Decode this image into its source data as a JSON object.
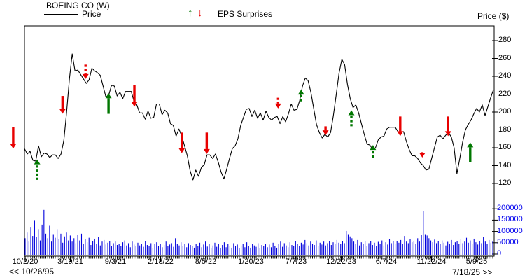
{
  "header": {
    "title": "BOEING CO (W)",
    "price_legend": "Price",
    "eps_legend": "EPS Surprises",
    "right_axis_title": "Price ($)",
    "up_glyph": "↑",
    "down_glyph": "↓"
  },
  "nav": {
    "back": "<< 10/26/95",
    "forward": "7/18/25 >>"
  },
  "colors": {
    "price_line": "#000000",
    "volume_bar": "#0000dd",
    "axis_label_blue": "#0000ee",
    "eps_up": "#007700",
    "eps_down": "#e80000",
    "border": "#000000"
  },
  "chart_data": {
    "type": "line",
    "title": "BOEING CO (W)",
    "ylabel": "Price ($)",
    "x_tick_labels": [
      "10/2/20",
      "3/19/21",
      "9/3/21",
      "2/18/22",
      "8/5/22",
      "1/20/23",
      "7/7/23",
      "12/22/23",
      "6/7/24",
      "11/22/24",
      "5/9/25"
    ],
    "price_axis_ticks": [
      280,
      260,
      240,
      220,
      200,
      180,
      160,
      140,
      120
    ],
    "price_axis_range": [
      98,
      296
    ],
    "grid": "off",
    "legend_position": "top",
    "series": [
      {
        "name": "Price",
        "values": [
          159,
          153,
          156,
          146,
          145,
          162,
          150,
          154,
          153,
          149,
          152,
          152,
          148,
          153,
          168,
          200,
          237,
          265,
          246,
          247,
          242,
          237,
          232,
          236,
          249,
          246,
          244,
          241,
          229,
          217,
          219,
          230,
          229,
          218,
          222,
          215,
          223,
          223,
          223,
          212,
          208,
          199,
          199,
          192,
          201,
          193,
          194,
          209,
          209,
          197,
          202,
          199,
          187,
          185,
          173,
          181,
          173,
          162,
          151,
          134,
          124,
          135,
          128,
          138,
          141,
          152,
          152,
          148,
          153,
          144,
          133,
          125,
          136,
          148,
          159,
          162,
          170,
          185,
          194,
          203,
          204,
          195,
          202,
          193,
          199,
          191,
          201,
          194,
          191,
          194,
          195,
          187,
          195,
          189,
          198,
          209,
          202,
          203,
          213,
          229,
          238,
          235,
          222,
          204,
          186,
          177,
          171,
          175,
          172,
          177,
          196,
          219,
          243,
          259,
          253,
          231,
          215,
          205,
          208,
          199,
          187,
          175,
          164,
          163,
          158,
          160,
          169,
          172,
          173,
          181,
          183,
          183,
          183,
          178,
          178,
          178,
          167,
          158,
          151,
          151,
          148,
          143,
          140,
          135,
          136,
          148,
          160,
          172,
          174,
          170,
          174,
          177,
          172,
          160,
          131,
          148,
          166,
          180,
          186,
          191,
          198,
          204,
          200,
          208,
          196,
          206,
          216,
          225
        ]
      }
    ],
    "volume": {
      "axis_tick_labels": [
        "200000",
        "150000",
        "100000",
        "50000",
        "0"
      ],
      "axis_ticks_k": [
        200,
        150,
        100,
        50,
        0
      ],
      "unit": "thousands of shares",
      "values_k": [
        70,
        95,
        55,
        120,
        80,
        150,
        75,
        110,
        60,
        130,
        195,
        90,
        70,
        125,
        55,
        88,
        72,
        110,
        65,
        90,
        50,
        78,
        95,
        60,
        82,
        55,
        70,
        48,
        85,
        60,
        90,
        45,
        65,
        52,
        72,
        40,
        58,
        68,
        45,
        75,
        38,
        55,
        62,
        42,
        50,
        58,
        36,
        48,
        55,
        40,
        45,
        35,
        52,
        60,
        38,
        48,
        30,
        55,
        42,
        35,
        50,
        38,
        45,
        32,
        58,
        40,
        35,
        48,
        28,
        44,
        52,
        34,
        46,
        30,
        40,
        55,
        36,
        42,
        48,
        32,
        70,
        45,
        38,
        52,
        35,
        44,
        30,
        48,
        40,
        34,
        28,
        45,
        35,
        50,
        30,
        42,
        55,
        33,
        46,
        28,
        38,
        50,
        32,
        44,
        26,
        40,
        52,
        30,
        45,
        36,
        28,
        48,
        34,
        42,
        25,
        38,
        45,
        30,
        52,
        35,
        28,
        44,
        38,
        32,
        48,
        26,
        40,
        34,
        46,
        30,
        42,
        30,
        50,
        36,
        28,
        45,
        55,
        32,
        48,
        38,
        30,
        52,
        40,
        34,
        58,
        44,
        36,
        50,
        42,
        62,
        48,
        38,
        55,
        45,
        40,
        60,
        35,
        50,
        42,
        55,
        38,
        48,
        58,
        40,
        52,
        45,
        62,
        50,
        44,
        56,
        48,
        102,
        88,
        78,
        70,
        55,
        45,
        62,
        38,
        52,
        44,
        58,
        35,
        48,
        56,
        40,
        50,
        36,
        54,
        46,
        60,
        38,
        52,
        42,
        65,
        48,
        56,
        44,
        58,
        50,
        62,
        45,
        80,
        55,
        48,
        66,
        52,
        58,
        45,
        70,
        55,
        85,
        190,
        88,
        82,
        70,
        60,
        52,
        64,
        48,
        56,
        44,
        60,
        50,
        38,
        54,
        46,
        62,
        40,
        52,
        58,
        44,
        66,
        48,
        55,
        72,
        50,
        60,
        45,
        68,
        52,
        42,
        58,
        48,
        75,
        55,
        46,
        62,
        50,
        58
      ]
    },
    "eps_surprises": [
      {
        "x_frac": -0.024,
        "dir": "down",
        "style": "solid",
        "tip_price": 159,
        "base_price": 183
      },
      {
        "x_frac": 0.027,
        "dir": "up",
        "style": "dashed",
        "tip_price": 147,
        "base_price": 124
      },
      {
        "x_frac": 0.081,
        "dir": "down",
        "style": "solid",
        "tip_price": 198,
        "base_price": 218
      },
      {
        "x_frac": 0.13,
        "dir": "down",
        "style": "dashed",
        "tip_price": 237,
        "base_price": 253
      },
      {
        "x_frac": 0.179,
        "dir": "up",
        "style": "solid",
        "tip_price": 221,
        "base_price": 198
      },
      {
        "x_frac": 0.234,
        "dir": "down",
        "style": "solid",
        "tip_price": 206,
        "base_price": 230
      },
      {
        "x_frac": 0.335,
        "dir": "down",
        "style": "solid",
        "tip_price": 154,
        "base_price": 177
      },
      {
        "x_frac": 0.388,
        "dir": "down",
        "style": "solid",
        "tip_price": 153,
        "base_price": 177
      },
      {
        "x_frac": 0.54,
        "dir": "down",
        "style": "dashed",
        "tip_price": 204,
        "base_price": 216
      },
      {
        "x_frac": 0.589,
        "dir": "up",
        "style": "dashed",
        "tip_price": 225,
        "base_price": 212
      },
      {
        "x_frac": 0.641,
        "dir": "down",
        "style": "solid",
        "tip_price": 174,
        "base_price": 184
      },
      {
        "x_frac": 0.696,
        "dir": "up",
        "style": "dashed",
        "tip_price": 202,
        "base_price": 184
      },
      {
        "x_frac": 0.742,
        "dir": "up",
        "style": "dashed",
        "tip_price": 163,
        "base_price": 149
      },
      {
        "x_frac": 0.8,
        "dir": "down",
        "style": "solid",
        "tip_price": 173,
        "base_price": 195
      },
      {
        "x_frac": 0.847,
        "dir": "down",
        "style": "solid",
        "tip_price": 149,
        "base_price": 155
      },
      {
        "x_frac": 0.902,
        "dir": "down",
        "style": "solid",
        "tip_price": 173,
        "base_price": 195
      },
      {
        "x_frac": 0.949,
        "dir": "up",
        "style": "solid",
        "tip_price": 166,
        "base_price": 144
      }
    ]
  }
}
